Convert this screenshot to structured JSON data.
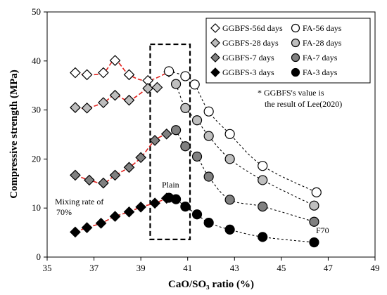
{
  "chart_data": {
    "type": "scatter",
    "xlabel": "CaO/SO₃ ratio (%)",
    "ylabel": "Compressive strength (MPa)",
    "xlim": [
      35,
      49
    ],
    "ylim": [
      0,
      50
    ],
    "xticks": [
      35,
      37,
      39,
      41,
      43,
      45,
      47,
      49
    ],
    "yticks": [
      0,
      10,
      20,
      30,
      40,
      50
    ],
    "grid": false,
    "legend": {
      "placement": "top-right",
      "columns": 2
    },
    "series": [
      {
        "name": "GGBFS-56d days",
        "marker": "diamond",
        "fill": "#ffffff",
        "trend": "red-dashed",
        "x": [
          36.2,
          36.7,
          37.4,
          37.9,
          38.5,
          39.3,
          40.2
        ],
        "y": [
          37.6,
          37.2,
          37.6,
          40.1,
          37.2,
          36.0,
          37.8
        ]
      },
      {
        "name": "GGBFS-28 days",
        "marker": "diamond",
        "fill": "#bdbdbd",
        "trend": "red-dashed",
        "x": [
          36.2,
          36.7,
          37.4,
          37.9,
          38.5,
          39.3,
          39.7
        ],
        "y": [
          30.5,
          30.4,
          31.5,
          33.0,
          32.0,
          34.4,
          34.6
        ]
      },
      {
        "name": "GGBFS-7 days",
        "marker": "diamond",
        "fill": "#808080",
        "trend": "red-dashed",
        "x": [
          36.2,
          36.8,
          37.4,
          37.9,
          38.5,
          39.0,
          39.6,
          40.1
        ],
        "y": [
          16.7,
          15.7,
          15.1,
          16.7,
          18.3,
          20.3,
          23.8,
          25.1
        ]
      },
      {
        "name": "GGBFS-3 days",
        "marker": "diamond",
        "fill": "#000000",
        "trend": "red-dashed",
        "x": [
          36.2,
          36.7,
          37.3,
          37.9,
          38.5,
          39.0,
          39.6,
          40.1
        ],
        "y": [
          5.1,
          6.0,
          6.9,
          8.3,
          9.2,
          10.2,
          11.0,
          12.0
        ]
      },
      {
        "name": "FA-56 days",
        "marker": "circle",
        "fill": "#ffffff",
        "trend": "black-dotted",
        "x": [
          40.2,
          40.9,
          41.3,
          41.9,
          42.8,
          44.2,
          46.5
        ],
        "y": [
          37.9,
          36.9,
          35.2,
          29.7,
          25.1,
          18.6,
          13.2
        ]
      },
      {
        "name": "FA-28 days",
        "marker": "circle",
        "fill": "#bfbfbf",
        "trend": "black-dotted",
        "x": [
          40.5,
          40.9,
          41.4,
          41.9,
          42.8,
          44.2,
          46.4
        ],
        "y": [
          35.3,
          30.4,
          27.9,
          24.7,
          20.0,
          15.7,
          10.5
        ]
      },
      {
        "name": "FA-7 days",
        "marker": "circle",
        "fill": "#808080",
        "trend": "black-dotted",
        "x": [
          40.5,
          40.9,
          41.4,
          41.9,
          42.8,
          44.2,
          46.4
        ],
        "y": [
          25.9,
          22.6,
          20.5,
          16.4,
          11.7,
          10.3,
          7.2
        ]
      },
      {
        "name": "FA-3 days",
        "marker": "circle",
        "fill": "#000000",
        "trend": "black-dotted",
        "x": [
          40.2,
          40.5,
          40.9,
          41.4,
          41.9,
          42.8,
          44.2,
          46.4
        ],
        "y": [
          12.1,
          11.8,
          10.3,
          8.7,
          7.0,
          5.6,
          4.1,
          3.0
        ]
      }
    ],
    "region": {
      "style": "dashed-box",
      "x": [
        39.4,
        41.1
      ],
      "y": [
        3.6,
        43.4
      ]
    },
    "annotations": {
      "plain": "Plain",
      "mixing_rate": "Mixing rate of 70%",
      "f70": "F70",
      "note": "* GGBFS's value is the result of Lee(2020)"
    }
  }
}
